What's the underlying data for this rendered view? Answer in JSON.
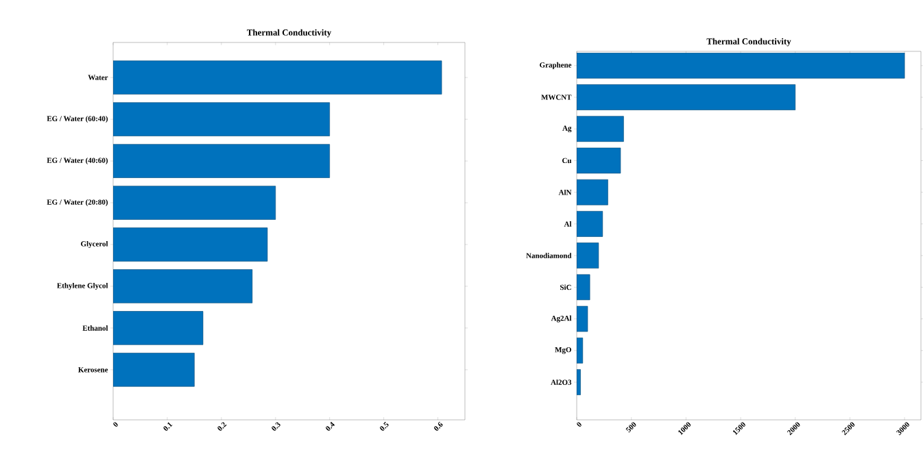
{
  "chart_data": [
    {
      "type": "bar",
      "orientation": "horizontal",
      "title": "Thermal Conductivity",
      "categories": [
        "Water",
        "EG / Water (60:40)",
        "EG / Water (40:60)",
        "EG / Water (20:80)",
        "Glycerol",
        "Ethylene Glycol",
        "Ethanol",
        "Kerosene"
      ],
      "values": [
        0.607,
        0.4,
        0.4,
        0.3,
        0.285,
        0.257,
        0.166,
        0.15
      ],
      "color": "#0072bd",
      "xlim": [
        0,
        0.65
      ],
      "xticks": [
        0,
        0.1,
        0.2,
        0.3,
        0.4,
        0.5,
        0.6
      ]
    },
    {
      "type": "bar",
      "orientation": "horizontal",
      "title": "Thermal Conductivity",
      "categories": [
        "Graphene",
        "MWCNT",
        "Ag",
        "Cu",
        "AlN",
        "Al",
        "Nanodiamond",
        "SiC",
        "Ag2Al",
        "MgO",
        "Al2O3"
      ],
      "values": [
        3000,
        2000,
        429,
        401,
        285,
        237,
        200,
        120,
        100,
        55,
        35
      ],
      "color": "#0072bd",
      "xlim": [
        0,
        3150
      ],
      "xticks": [
        0,
        500,
        1000,
        1500,
        2000,
        2500,
        3000
      ]
    }
  ]
}
